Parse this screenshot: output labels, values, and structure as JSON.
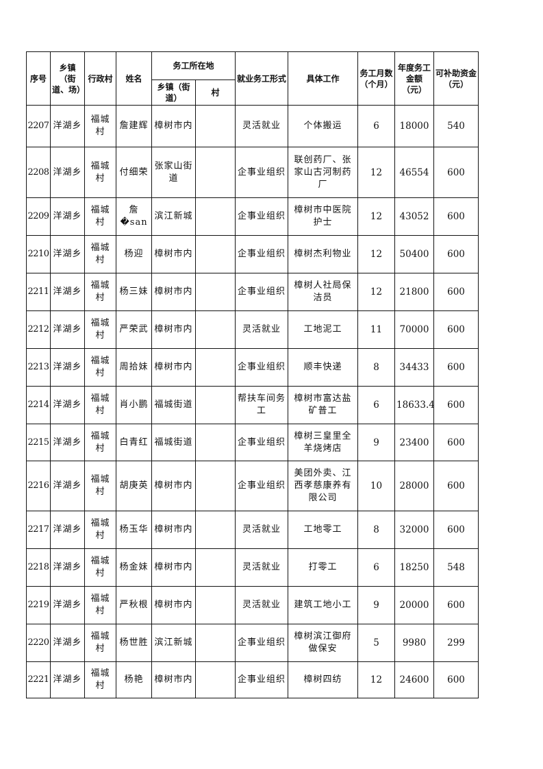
{
  "headers": {
    "seq": "序号",
    "town": "乡镇（街道、场）",
    "village": "行政村",
    "name": "姓名",
    "work_location": "务工所在地",
    "work_town": "乡镇（街道）",
    "work_village": "村",
    "form": "就业务工形式",
    "job": "具体工作",
    "months": "务工月数（个月）",
    "income": "年度务工金额（元）",
    "subsidy": "可补助资金（元）"
  },
  "rows": [
    {
      "seq": "2207",
      "town": "洋湖乡",
      "village": "福城村",
      "name": "詹建辉",
      "work_town": "樟树市内",
      "work_village": "",
      "form": "灵活就业",
      "job": "个体搬运",
      "months": "6",
      "income": "18000",
      "subsidy": "540"
    },
    {
      "seq": "2208",
      "town": "洋湖乡",
      "village": "福城村",
      "name": "付细荣",
      "work_town": "张家山街道",
      "work_village": "",
      "form": "企事业组织",
      "job": "联创药厂、张家山古河制药厂",
      "months": "12",
      "income": "46554",
      "subsidy": "600"
    },
    {
      "seq": "2209",
      "town": "洋湖乡",
      "village": "福城村",
      "name": "詹�san",
      "work_town": "滨江新城",
      "work_village": "",
      "form": "企事业组织",
      "job": "樟树市中医院护士",
      "months": "12",
      "income": "43052",
      "subsidy": "600"
    },
    {
      "seq": "2210",
      "town": "洋湖乡",
      "village": "福城村",
      "name": "杨迎",
      "work_town": "樟树市内",
      "work_village": "",
      "form": "企事业组织",
      "job": "樟树杰利物业",
      "months": "12",
      "income": "50400",
      "subsidy": "600"
    },
    {
      "seq": "2211",
      "town": "洋湖乡",
      "village": "福城村",
      "name": "杨三妹",
      "work_town": "樟树市内",
      "work_village": "",
      "form": "企事业组织",
      "job": "樟树人社局保洁员",
      "months": "12",
      "income": "21800",
      "subsidy": "600"
    },
    {
      "seq": "2212",
      "town": "洋湖乡",
      "village": "福城村",
      "name": "严荣武",
      "work_town": "樟树市内",
      "work_village": "",
      "form": "灵活就业",
      "job": "工地泥工",
      "months": "11",
      "income": "70000",
      "subsidy": "600"
    },
    {
      "seq": "2213",
      "town": "洋湖乡",
      "village": "福城村",
      "name": "周拾妹",
      "work_town": "樟树市内",
      "work_village": "",
      "form": "企事业组织",
      "job": "顺丰快递",
      "months": "8",
      "income": "34433",
      "subsidy": "600"
    },
    {
      "seq": "2214",
      "town": "洋湖乡",
      "village": "福城村",
      "name": "肖小鹏",
      "work_town": "福城街道",
      "work_village": "",
      "form": "帮扶车间务工",
      "job": "樟树市富达盐矿普工",
      "months": "6",
      "income": "18633.4",
      "subsidy": "600"
    },
    {
      "seq": "2215",
      "town": "洋湖乡",
      "village": "福城村",
      "name": "白青红",
      "work_town": "福城街道",
      "work_village": "",
      "form": "企事业组织",
      "job": "樟树三皇里全羊烧烤店",
      "months": "9",
      "income": "23400",
      "subsidy": "600"
    },
    {
      "seq": "2216",
      "town": "洋湖乡",
      "village": "福城村",
      "name": "胡庚英",
      "work_town": "樟树市内",
      "work_village": "",
      "form": "企事业组织",
      "job": "美团外卖、江西孝慈康养有限公司",
      "months": "10",
      "income": "28000",
      "subsidy": "600"
    },
    {
      "seq": "2217",
      "town": "洋湖乡",
      "village": "福城村",
      "name": "杨玉华",
      "work_town": "樟树市内",
      "work_village": "",
      "form": "灵活就业",
      "job": "工地零工",
      "months": "8",
      "income": "32000",
      "subsidy": "600"
    },
    {
      "seq": "2218",
      "town": "洋湖乡",
      "village": "福城村",
      "name": "杨金妹",
      "work_town": "樟树市内",
      "work_village": "",
      "form": "灵活就业",
      "job": "打零工",
      "months": "6",
      "income": "18250",
      "subsidy": "548"
    },
    {
      "seq": "2219",
      "town": "洋湖乡",
      "village": "福城村",
      "name": "严秋根",
      "work_town": "樟树市内",
      "work_village": "",
      "form": "灵活就业",
      "job": "建筑工地小工",
      "months": "9",
      "income": "20000",
      "subsidy": "600"
    },
    {
      "seq": "2220",
      "town": "洋湖乡",
      "village": "福城村",
      "name": "杨世胜",
      "work_town": "滨江新城",
      "work_village": "",
      "form": "企事业组织",
      "job": "樟树滨江御府做保安",
      "months": "5",
      "income": "9980",
      "subsidy": "299"
    },
    {
      "seq": "2221",
      "town": "洋湖乡",
      "village": "福城村",
      "name": "杨艳",
      "work_town": "樟树市内",
      "work_village": "",
      "form": "企事业组织",
      "job": "樟树四纺",
      "months": "12",
      "income": "24600",
      "subsidy": "600"
    }
  ]
}
